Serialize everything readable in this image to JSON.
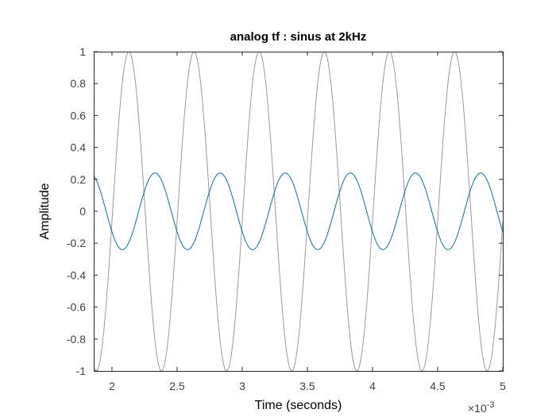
{
  "chart_data": {
    "type": "line",
    "title": "analog tf : sinus at 2kHz",
    "xlabel": "Time (seconds)",
    "ylabel": "Amplitude",
    "x_exponent_base": "×10",
    "x_exponent_power": "-3",
    "x_scale": 0.001,
    "xlim": [
      0.00186,
      0.005
    ],
    "ylim": [
      -1,
      1
    ],
    "x_ticks": [
      2,
      2.5,
      3,
      3.5,
      4,
      4.5,
      5
    ],
    "x_tick_labels": [
      "2",
      "2.5",
      "3",
      "3.5",
      "4",
      "4.5",
      "5"
    ],
    "y_ticks": [
      -1,
      -0.8,
      -0.6,
      -0.4,
      -0.2,
      0,
      0.2,
      0.4,
      0.6,
      0.8,
      1
    ],
    "y_tick_labels": [
      "-1",
      "-0.8",
      "-0.6",
      "-0.4",
      "-0.2",
      "0",
      "0.2",
      "0.4",
      "0.6",
      "0.8",
      "1"
    ],
    "grid": false,
    "box": true,
    "series": [
      {
        "color": "#999999",
        "frequency_hz": 2000,
        "amplitude": 1,
        "peak_time": 0.00213,
        "function": "amplitude*cos(2*pi*frequency_hz*(t-peak_time))"
      },
      {
        "color": "#0072bd",
        "frequency_hz": 2000,
        "amplitude": 0.24,
        "peak_time": 0.00233,
        "function": "amplitude*cos(2*pi*frequency_hz*(t-peak_time))"
      }
    ]
  }
}
